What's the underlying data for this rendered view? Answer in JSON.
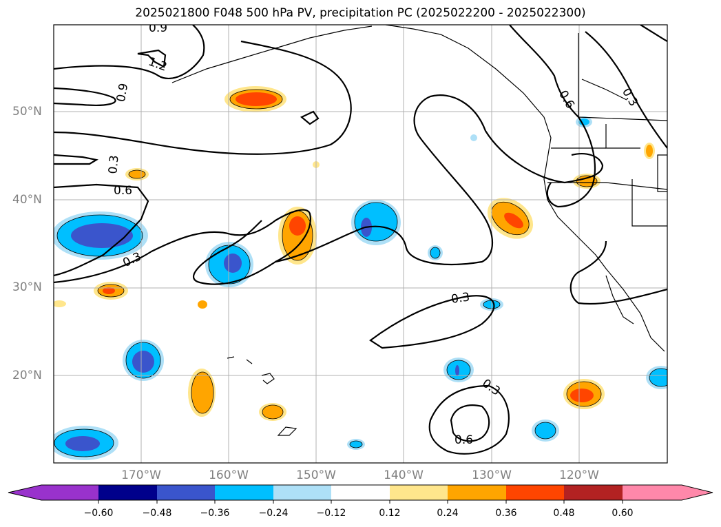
{
  "title": "2025021800 F048 500 hPa PV, precipitation PC (2025022200 - 2025022300)",
  "lat_labels": [
    "50°N",
    "40°N",
    "30°N",
    "20°N"
  ],
  "lon_labels": [
    "170°W",
    "160°W",
    "150°W",
    "140°W",
    "130°W",
    "120°W"
  ],
  "contour_labels": [
    "0.9",
    "1.2",
    "0.9",
    "0.3",
    "0.6",
    "0.3",
    "0.3",
    "0.3",
    "0.6",
    "0.6",
    "0.3"
  ],
  "colorbar": {
    "tick_labels": [
      "−0.60",
      "−0.48",
      "−0.36",
      "−0.24",
      "−0.12",
      "0.12",
      "0.24",
      "0.36",
      "0.48",
      "0.60"
    ],
    "colors": [
      "#9932cc",
      "#00008b",
      "#3a55cc",
      "#00bfff",
      "#aee0f7",
      "#ffffff",
      "#ffe68c",
      "#ffa500",
      "#ff4500",
      "#b22222",
      "#ff88aa"
    ]
  }
}
